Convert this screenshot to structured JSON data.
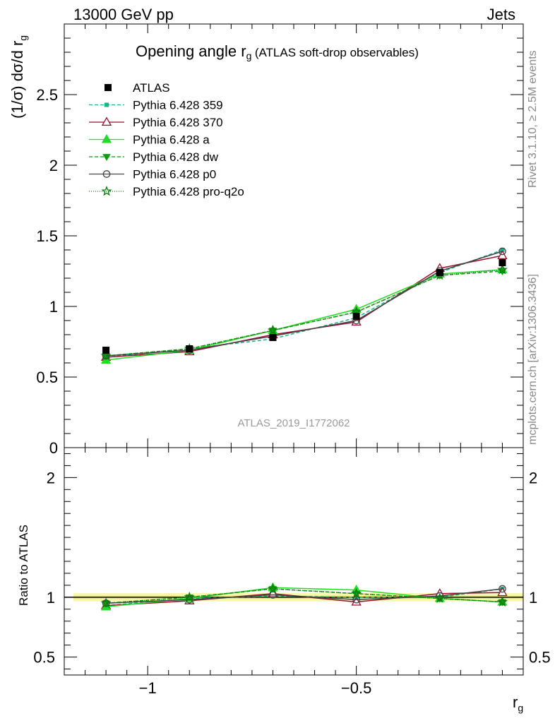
{
  "header": {
    "left": "13000 GeV pp",
    "right": "Jets"
  },
  "side_labels": {
    "rivet": "Rivet 3.1.10, ≥ 2.5M events",
    "mcplots": "mcplots.cern.ch [arXiv:1306.3436]"
  },
  "chart_data": [
    {
      "type": "line",
      "title": "Opening angle r",
      "title_sub": "g",
      "title_suffix": "(ATLAS soft-drop observables)",
      "watermark": "ATLAS_2019_I1772062",
      "ylabel": "(1/σ) dσ/d r",
      "ylabel_sub": "g",
      "xlim": [
        -1.2,
        -0.1
      ],
      "ylim": [
        0,
        3.0
      ],
      "yticks": [
        "0",
        "0.5",
        "1",
        "1.5",
        "2",
        "2.5"
      ],
      "x": [
        -1.1,
        -0.9,
        -0.7,
        -0.5,
        -0.3,
        -0.15
      ],
      "data": {
        "name": "ATLAS",
        "values": [
          0.69,
          0.7,
          0.78,
          0.93,
          1.24,
          1.31
        ]
      },
      "series": [
        {
          "name": "Pythia 6.428 359",
          "color": "#19b38c",
          "dash": "5,3",
          "marker": "square-small",
          "values": [
            0.64,
            0.7,
            0.77,
            0.92,
            1.24,
            1.4
          ]
        },
        {
          "name": "Pythia 6.428 370",
          "color": "#9b1030",
          "dash": "",
          "marker": "triangle-open",
          "values": [
            0.64,
            0.68,
            0.8,
            0.89,
            1.27,
            1.36
          ]
        },
        {
          "name": "Pythia 6.428 a",
          "color": "#22dd22",
          "dash": "",
          "marker": "triangle-filled",
          "values": [
            0.62,
            0.69,
            0.83,
            0.98,
            1.23,
            1.26
          ]
        },
        {
          "name": "Pythia 6.428 dw",
          "color": "#149a14",
          "dash": "5,3",
          "marker": "triangle-down",
          "values": [
            0.65,
            0.7,
            0.83,
            0.96,
            1.22,
            1.25
          ]
        },
        {
          "name": "Pythia 6.428 p0",
          "color": "#444444",
          "dash": "",
          "marker": "circle-open",
          "values": [
            0.65,
            0.69,
            0.79,
            0.9,
            1.25,
            1.39
          ]
        },
        {
          "name": "Pythia 6.428 pro-q2o",
          "color": "#0a7a0a",
          "dash": "1,2",
          "marker": "star",
          "values": [
            0.65,
            0.7,
            0.83,
            0.96,
            1.22,
            1.26
          ]
        }
      ]
    },
    {
      "type": "line",
      "ylabel": "Ratio to ATLAS",
      "xlabel": "r",
      "xlabel_sub": "g",
      "xlim": [
        -1.2,
        -0.1
      ],
      "ylim": [
        0.35,
        2.25
      ],
      "yticks": [
        "0.5",
        "1",
        "2"
      ],
      "xticks": [
        "−1",
        "−0.5"
      ],
      "x": [
        -1.1,
        -0.9,
        -0.7,
        -0.5,
        -0.3,
        -0.15
      ],
      "series": [
        {
          "name": "Pythia 6.428 359",
          "values": [
            0.93,
            0.99,
            1.01,
            1.0,
            1.0,
            1.07
          ]
        },
        {
          "name": "Pythia 6.428 370",
          "values": [
            0.93,
            0.97,
            1.03,
            0.96,
            1.03,
            1.04
          ]
        },
        {
          "name": "Pythia 6.428 a",
          "values": [
            0.92,
            0.99,
            1.08,
            1.06,
            0.99,
            0.96
          ]
        },
        {
          "name": "Pythia 6.428 dw",
          "values": [
            0.95,
            1.0,
            1.07,
            1.03,
            0.99,
            0.96
          ]
        },
        {
          "name": "Pythia 6.428 p0",
          "values": [
            0.95,
            0.98,
            1.02,
            0.98,
            1.01,
            1.07
          ]
        },
        {
          "name": "Pythia 6.428 pro-q2o",
          "values": [
            0.95,
            1.0,
            1.07,
            1.03,
            0.99,
            0.96
          ]
        }
      ]
    }
  ]
}
